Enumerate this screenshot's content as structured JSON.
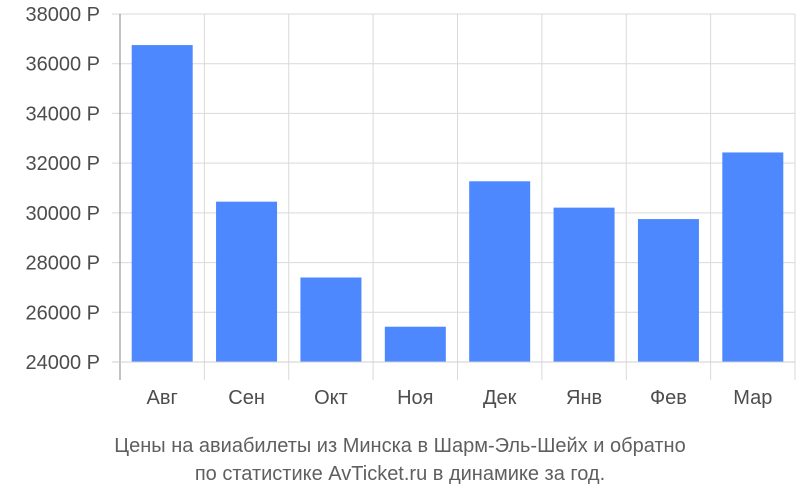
{
  "chart_data": {
    "type": "bar",
    "categories": [
      "Авг",
      "Сен",
      "Окт",
      "Ноя",
      "Дек",
      "Янв",
      "Фев",
      "Мар"
    ],
    "values": [
      36750,
      30450,
      27400,
      25420,
      31270,
      30210,
      29750,
      32430
    ],
    "ylim": [
      24000,
      38000
    ],
    "yticks": [
      24000,
      26000,
      28000,
      30000,
      32000,
      34000,
      36000,
      38000
    ],
    "y_tick_suffix": " Р",
    "grid": true,
    "bar_color": "#4d88ff",
    "title": "",
    "xlabel": "",
    "ylabel": ""
  },
  "caption": {
    "line1": "Цены на авиабилеты из Минска в Шарм-Эль-Шейх и обратно",
    "line2": "по статистике AvTicket.ru в динамике за год."
  }
}
